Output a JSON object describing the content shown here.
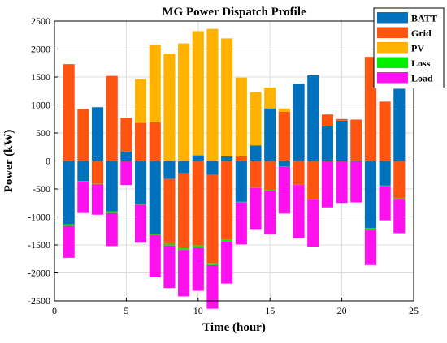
{
  "chart_data": {
    "type": "bar",
    "stacked": true,
    "title": "MG Power Dispatch Profile",
    "xlabel": "Time (hour)",
    "ylabel": "Power (kW)",
    "xlim": [
      0,
      25
    ],
    "ylim": [
      -2500,
      2500
    ],
    "xticks": [
      0,
      5,
      10,
      15,
      20,
      25
    ],
    "yticks": [
      -2500,
      -2000,
      -1500,
      -1000,
      -500,
      0,
      500,
      1000,
      1500,
      2000,
      2500
    ],
    "grid": true,
    "legend_position": "top-right",
    "x": [
      1,
      2,
      3,
      4,
      5,
      6,
      7,
      8,
      9,
      10,
      11,
      12,
      13,
      14,
      15,
      16,
      17,
      18,
      19,
      20,
      21,
      22,
      23,
      24
    ],
    "series": [
      {
        "name": "BATT",
        "color": "#0072BD",
        "values": [
          -1130,
          -360,
          960,
          -900,
          170,
          -770,
          -1300,
          -320,
          -220,
          100,
          -250,
          80,
          -730,
          280,
          940,
          -100,
          1380,
          1530,
          620,
          720,
          0,
          -1200,
          -440,
          1290
        ]
      },
      {
        "name": "Grid",
        "color": "#FF5511",
        "values": [
          1730,
          930,
          -410,
          1520,
          600,
          680,
          690,
          -1160,
          -1340,
          -1510,
          -1580,
          -1410,
          80,
          -470,
          -520,
          880,
          -420,
          -680,
          210,
          30,
          740,
          1860,
          1060,
          -670
        ]
      },
      {
        "name": "PV",
        "color": "#FFB300",
        "values": [
          0,
          0,
          0,
          0,
          0,
          780,
          1390,
          1920,
          2100,
          2220,
          2360,
          2110,
          1410,
          950,
          370,
          60,
          0,
          0,
          0,
          0,
          0,
          0,
          0,
          0
        ]
      },
      {
        "name": "Loss",
        "color": "#00EE00",
        "values": [
          -30,
          -10,
          -10,
          -30,
          -5,
          -10,
          -20,
          -30,
          -30,
          -40,
          -30,
          -30,
          -10,
          -10,
          -10,
          -5,
          -10,
          -10,
          -5,
          -5,
          -5,
          -40,
          -10,
          -20
        ]
      },
      {
        "name": "Load",
        "color": "#FF11EE",
        "values": [
          -570,
          -560,
          -540,
          -590,
          -425,
          -680,
          -760,
          -760,
          -830,
          -770,
          -780,
          -750,
          -750,
          -750,
          -780,
          -835,
          -950,
          -840,
          -825,
          -745,
          -735,
          -620,
          -610,
          -600
        ]
      }
    ]
  }
}
